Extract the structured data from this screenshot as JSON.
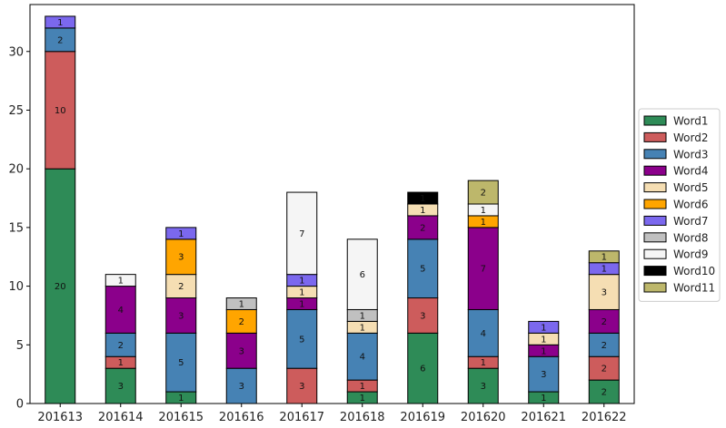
{
  "chart_data": {
    "type": "bar",
    "stacked": true,
    "categories": [
      "201613",
      "201614",
      "201615",
      "201616",
      "201617",
      "201618",
      "201619",
      "201620",
      "201621",
      "201622"
    ],
    "series": [
      {
        "name": "Word1",
        "color": "#2e8b57",
        "values": [
          20,
          3,
          1,
          0,
          0,
          1,
          6,
          3,
          1,
          2
        ]
      },
      {
        "name": "Word2",
        "color": "#cd5c5c",
        "values": [
          10,
          1,
          0,
          0,
          3,
          1,
          3,
          1,
          0,
          2
        ]
      },
      {
        "name": "Word3",
        "color": "#4682b4",
        "values": [
          2,
          2,
          5,
          3,
          5,
          4,
          5,
          4,
          3,
          2
        ]
      },
      {
        "name": "Word4",
        "color": "#8b008b",
        "values": [
          0,
          4,
          3,
          3,
          1,
          0,
          2,
          7,
          1,
          2
        ]
      },
      {
        "name": "Word5",
        "color": "#f5deb3",
        "values": [
          0,
          0,
          2,
          0,
          1,
          1,
          1,
          0,
          1,
          3
        ]
      },
      {
        "name": "Word6",
        "color": "#ffa500",
        "values": [
          0,
          0,
          3,
          2,
          0,
          0,
          0,
          1,
          0,
          0
        ]
      },
      {
        "name": "Word7",
        "color": "#7b68ee",
        "values": [
          1,
          0,
          1,
          0,
          1,
          0,
          0,
          0,
          1,
          1
        ]
      },
      {
        "name": "Word8",
        "color": "#c0c0c0",
        "values": [
          0,
          0,
          0,
          1,
          0,
          1,
          0,
          0,
          0,
          0
        ]
      },
      {
        "name": "Word9",
        "color": "#f5f5f5",
        "values": [
          0,
          1,
          0,
          0,
          7,
          6,
          0,
          1,
          0,
          0
        ]
      },
      {
        "name": "Word10",
        "color": "#000000",
        "values": [
          0,
          0,
          0,
          0,
          0,
          0,
          1,
          0,
          0,
          0
        ]
      },
      {
        "name": "Word11",
        "color": "#bdb76b",
        "values": [
          0,
          0,
          0,
          0,
          0,
          0,
          0,
          2,
          0,
          1
        ]
      }
    ],
    "ylim": [
      0,
      34
    ],
    "yticks": [
      0,
      5,
      10,
      15,
      20,
      25,
      30
    ],
    "title": "",
    "xlabel": "",
    "ylabel": "",
    "legend_position": "right",
    "grid": false
  }
}
